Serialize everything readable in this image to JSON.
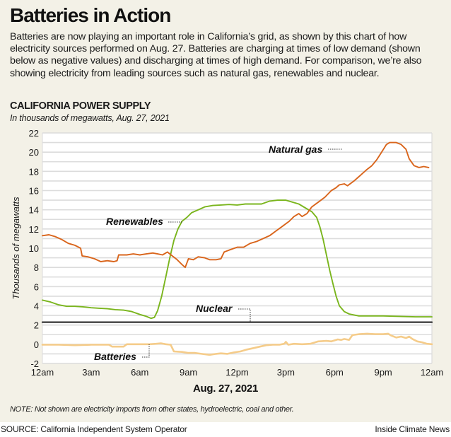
{
  "header": {
    "title": "Batteries in Action",
    "dek": "Batteries are now playing an important role in California’s grid, as shown by this chart of how electricity sources performed on Aug. 27. Batteries are charging at times of low demand (shown below as negative values) and discharging at times of high demand. For comparison, we’re also showing electricity from leading sources such as natural gas, renewables and nuclear."
  },
  "chart_header": {
    "title": "CALIFORNIA POWER SUPPLY",
    "subtitle": "In thousands of megawatts, Aug. 27, 2021"
  },
  "footer": {
    "note": "NOTE: Not shown are electricity imports from other states, hydroelectric, coal and other.",
    "source": "SOURCE: California Independent System Operator",
    "credit": "Inside Climate News"
  },
  "chart_data": {
    "type": "line",
    "title": "CALIFORNIA POWER SUPPLY",
    "subtitle": "In thousands of megawatts, Aug. 27, 2021",
    "xlabel": "Aug. 27, 2021",
    "ylabel": "Thousands of megawatts",
    "x_unit": "hours since midnight",
    "xlim": [
      0,
      24
    ],
    "ylim": [
      -2,
      22
    ],
    "yticks": [
      -2,
      0,
      2,
      4,
      6,
      8,
      10,
      12,
      14,
      16,
      18,
      20,
      22
    ],
    "minor_grid_step": 1,
    "grid": true,
    "xticks": [
      {
        "x": 0,
        "label": "12am"
      },
      {
        "x": 3,
        "label": "3am"
      },
      {
        "x": 6,
        "label": "6am"
      },
      {
        "x": 9,
        "label": "9am"
      },
      {
        "x": 12,
        "label": "12pm"
      },
      {
        "x": 15,
        "label": "3pm"
      },
      {
        "x": 18,
        "label": "6pm"
      },
      {
        "x": 21,
        "label": "9pm"
      },
      {
        "x": 24,
        "label": "12am"
      }
    ],
    "series": [
      {
        "name": "Natural gas",
        "color": "#d9651c",
        "points": [
          [
            0,
            11.3
          ],
          [
            0.4,
            11.4
          ],
          [
            0.8,
            11.2
          ],
          [
            1.2,
            10.9
          ],
          [
            1.6,
            10.5
          ],
          [
            2.0,
            10.3
          ],
          [
            2.35,
            10.0
          ],
          [
            2.45,
            9.2
          ],
          [
            2.8,
            9.1
          ],
          [
            3.2,
            8.9
          ],
          [
            3.6,
            8.6
          ],
          [
            4.0,
            8.7
          ],
          [
            4.4,
            8.6
          ],
          [
            4.6,
            8.7
          ],
          [
            4.7,
            9.3
          ],
          [
            5.2,
            9.3
          ],
          [
            5.6,
            9.4
          ],
          [
            6.0,
            9.3
          ],
          [
            6.4,
            9.4
          ],
          [
            6.8,
            9.5
          ],
          [
            7.1,
            9.4
          ],
          [
            7.4,
            9.3
          ],
          [
            7.7,
            9.6
          ],
          [
            8.0,
            9.2
          ],
          [
            8.3,
            8.8
          ],
          [
            8.6,
            8.3
          ],
          [
            8.8,
            8.0
          ],
          [
            9.0,
            8.9
          ],
          [
            9.3,
            8.8
          ],
          [
            9.6,
            9.1
          ],
          [
            10.0,
            9.0
          ],
          [
            10.3,
            8.8
          ],
          [
            10.7,
            8.8
          ],
          [
            11.0,
            8.9
          ],
          [
            11.2,
            9.6
          ],
          [
            11.5,
            9.8
          ],
          [
            12.0,
            10.1
          ],
          [
            12.4,
            10.1
          ],
          [
            12.8,
            10.5
          ],
          [
            13.2,
            10.7
          ],
          [
            13.6,
            11.0
          ],
          [
            14.0,
            11.3
          ],
          [
            14.4,
            11.8
          ],
          [
            14.8,
            12.3
          ],
          [
            15.2,
            12.8
          ],
          [
            15.5,
            13.3
          ],
          [
            15.8,
            13.6
          ],
          [
            16.0,
            13.3
          ],
          [
            16.3,
            13.6
          ],
          [
            16.6,
            14.3
          ],
          [
            17.0,
            14.8
          ],
          [
            17.4,
            15.3
          ],
          [
            17.8,
            16.0
          ],
          [
            18.1,
            16.3
          ],
          [
            18.3,
            16.6
          ],
          [
            18.6,
            16.7
          ],
          [
            18.8,
            16.5
          ],
          [
            19.2,
            17.0
          ],
          [
            19.6,
            17.6
          ],
          [
            20.0,
            18.2
          ],
          [
            20.3,
            18.6
          ],
          [
            20.6,
            19.2
          ],
          [
            20.9,
            20.0
          ],
          [
            21.2,
            20.8
          ],
          [
            21.4,
            21.0
          ],
          [
            21.8,
            21.0
          ],
          [
            22.1,
            20.8
          ],
          [
            22.4,
            20.3
          ],
          [
            22.6,
            19.3
          ],
          [
            22.9,
            18.6
          ],
          [
            23.2,
            18.4
          ],
          [
            23.5,
            18.5
          ],
          [
            23.8,
            18.4
          ]
        ]
      },
      {
        "name": "Renewables",
        "color": "#7ab51d",
        "points": [
          [
            0,
            4.6
          ],
          [
            0.5,
            4.4
          ],
          [
            1.0,
            4.1
          ],
          [
            1.5,
            3.95
          ],
          [
            2.0,
            3.95
          ],
          [
            2.5,
            3.9
          ],
          [
            3.0,
            3.8
          ],
          [
            3.5,
            3.75
          ],
          [
            4.0,
            3.7
          ],
          [
            4.5,
            3.6
          ],
          [
            5.0,
            3.55
          ],
          [
            5.5,
            3.4
          ],
          [
            6.0,
            3.1
          ],
          [
            6.4,
            2.9
          ],
          [
            6.7,
            2.7
          ],
          [
            6.9,
            2.8
          ],
          [
            7.1,
            3.5
          ],
          [
            7.35,
            5.0
          ],
          [
            7.6,
            7.0
          ],
          [
            7.85,
            9.0
          ],
          [
            8.1,
            10.8
          ],
          [
            8.35,
            12.0
          ],
          [
            8.6,
            12.8
          ],
          [
            8.9,
            13.2
          ],
          [
            9.2,
            13.7
          ],
          [
            9.6,
            14.0
          ],
          [
            10.0,
            14.3
          ],
          [
            10.5,
            14.45
          ],
          [
            11.0,
            14.5
          ],
          [
            11.5,
            14.55
          ],
          [
            12.0,
            14.5
          ],
          [
            12.5,
            14.6
          ],
          [
            13.0,
            14.6
          ],
          [
            13.5,
            14.6
          ],
          [
            14.0,
            14.9
          ],
          [
            14.5,
            15.0
          ],
          [
            15.0,
            15.0
          ],
          [
            15.4,
            14.8
          ],
          [
            15.8,
            14.6
          ],
          [
            16.2,
            14.2
          ],
          [
            16.6,
            13.8
          ],
          [
            16.9,
            13.2
          ],
          [
            17.1,
            12.2
          ],
          [
            17.3,
            10.9
          ],
          [
            17.5,
            9.3
          ],
          [
            17.7,
            7.7
          ],
          [
            17.9,
            6.3
          ],
          [
            18.1,
            5.0
          ],
          [
            18.3,
            4.0
          ],
          [
            18.6,
            3.4
          ],
          [
            18.9,
            3.15
          ],
          [
            19.2,
            3.05
          ],
          [
            19.5,
            2.95
          ],
          [
            20.0,
            2.95
          ],
          [
            21.0,
            2.95
          ],
          [
            22.0,
            2.9
          ],
          [
            23.0,
            2.85
          ],
          [
            24.0,
            2.85
          ]
        ]
      },
      {
        "name": "Nuclear",
        "color": "#333333",
        "points": [
          [
            0,
            2.3
          ],
          [
            24,
            2.3
          ]
        ]
      },
      {
        "name": "Batteries",
        "color": "#f5cc8a",
        "points": [
          [
            0,
            -0.05
          ],
          [
            1.0,
            -0.05
          ],
          [
            2.0,
            -0.1
          ],
          [
            3.0,
            -0.05
          ],
          [
            4.1,
            -0.05
          ],
          [
            4.3,
            -0.25
          ],
          [
            5.0,
            -0.25
          ],
          [
            5.2,
            0.0
          ],
          [
            6.0,
            0.0
          ],
          [
            6.6,
            0.0
          ],
          [
            7.0,
            0.05
          ],
          [
            7.3,
            0.1
          ],
          [
            7.6,
            0.0
          ],
          [
            7.9,
            -0.05
          ],
          [
            8.1,
            -0.75
          ],
          [
            8.6,
            -0.8
          ],
          [
            9.0,
            -0.9
          ],
          [
            9.4,
            -0.9
          ],
          [
            9.8,
            -1.0
          ],
          [
            10.3,
            -1.1
          ],
          [
            10.7,
            -1.0
          ],
          [
            11.0,
            -0.95
          ],
          [
            11.4,
            -1.0
          ],
          [
            11.8,
            -0.85
          ],
          [
            12.2,
            -0.75
          ],
          [
            12.6,
            -0.55
          ],
          [
            13.0,
            -0.4
          ],
          [
            13.4,
            -0.25
          ],
          [
            13.8,
            -0.1
          ],
          [
            14.2,
            -0.05
          ],
          [
            14.6,
            -0.05
          ],
          [
            14.9,
            0.05
          ],
          [
            15.0,
            0.25
          ],
          [
            15.15,
            -0.05
          ],
          [
            15.5,
            0.05
          ],
          [
            16.0,
            0.0
          ],
          [
            16.5,
            0.05
          ],
          [
            17.0,
            0.3
          ],
          [
            17.5,
            0.35
          ],
          [
            17.8,
            0.3
          ],
          [
            18.0,
            0.4
          ],
          [
            18.2,
            0.5
          ],
          [
            18.4,
            0.45
          ],
          [
            18.6,
            0.55
          ],
          [
            18.9,
            0.45
          ],
          [
            19.1,
            0.95
          ],
          [
            19.5,
            1.05
          ],
          [
            20.0,
            1.1
          ],
          [
            20.5,
            1.05
          ],
          [
            21.0,
            1.05
          ],
          [
            21.3,
            1.1
          ],
          [
            21.5,
            0.9
          ],
          [
            21.8,
            0.7
          ],
          [
            22.1,
            0.8
          ],
          [
            22.4,
            0.65
          ],
          [
            22.6,
            0.8
          ],
          [
            22.8,
            0.55
          ],
          [
            23.1,
            0.3
          ],
          [
            23.4,
            0.2
          ],
          [
            23.7,
            0.05
          ],
          [
            24,
            0.0
          ]
        ]
      }
    ],
    "annotations": [
      {
        "text": "Natural gas",
        "series": "Natural gas"
      },
      {
        "text": "Renewables",
        "series": "Renewables"
      },
      {
        "text": "Nuclear",
        "series": "Nuclear"
      },
      {
        "text": "Batteries",
        "series": "Batteries"
      }
    ],
    "legend": "inline labels"
  }
}
